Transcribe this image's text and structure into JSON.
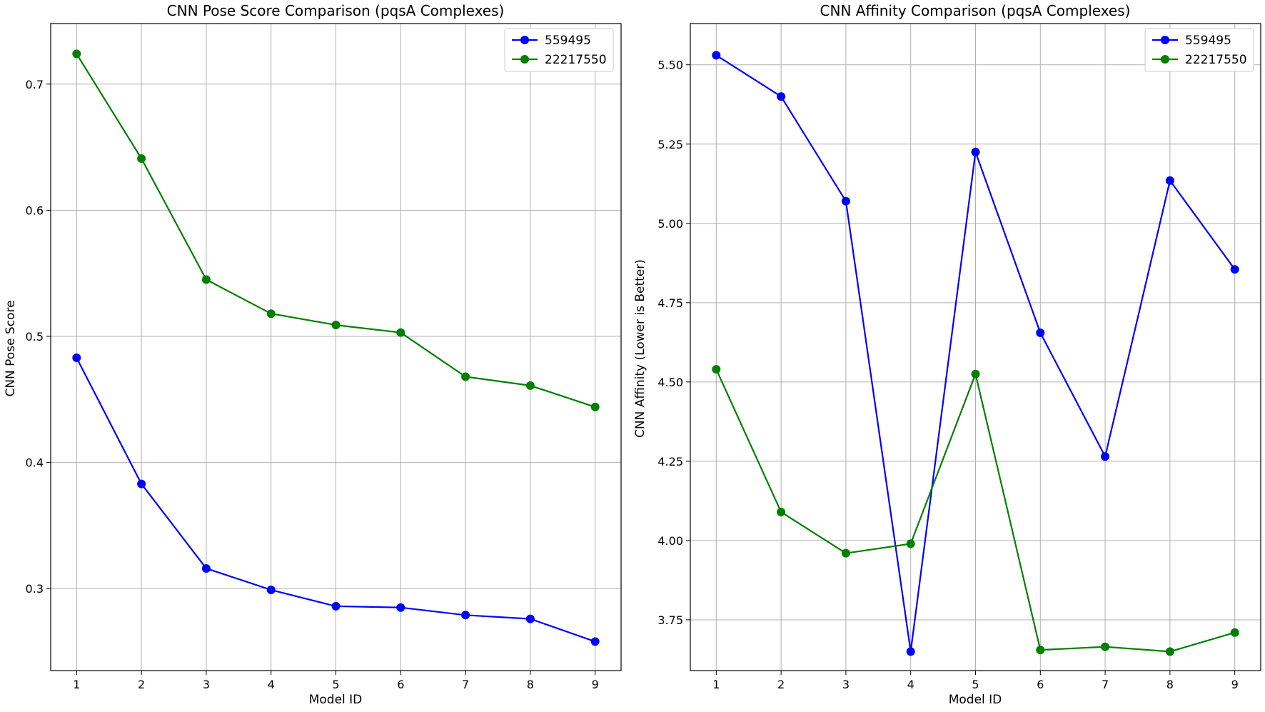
{
  "chart_data": [
    {
      "type": "line",
      "title": "CNN Pose Score Comparison (pqsA Complexes)",
      "xlabel": "Model ID",
      "ylabel": "CNN Pose Score",
      "x": [
        1,
        2,
        3,
        4,
        5,
        6,
        7,
        8,
        9
      ],
      "xlim": [
        0.6,
        9.4
      ],
      "ylim": [
        0.235,
        0.748
      ],
      "xticks": [
        1,
        2,
        3,
        4,
        5,
        6,
        7,
        8,
        9
      ],
      "yticks": [
        0.3,
        0.4,
        0.5,
        0.6,
        0.7
      ],
      "ytick_labels": [
        "0.3",
        "0.4",
        "0.5",
        "0.6",
        "0.7"
      ],
      "grid": true,
      "legend_position": "top-right",
      "series": [
        {
          "name": "559495",
          "color": "#0000ff",
          "values": [
            0.483,
            0.383,
            0.316,
            0.299,
            0.286,
            0.285,
            0.279,
            0.276,
            0.258
          ]
        },
        {
          "name": "22217550",
          "color": "#008000",
          "values": [
            0.724,
            0.641,
            0.545,
            0.518,
            0.509,
            0.503,
            0.468,
            0.461,
            0.444
          ]
        }
      ]
    },
    {
      "type": "line",
      "title": "CNN Affinity Comparison (pqsA Complexes)",
      "xlabel": "Model ID",
      "ylabel": "CNN Affinity (Lower is Better)",
      "x": [
        1,
        2,
        3,
        4,
        5,
        6,
        7,
        8,
        9
      ],
      "xlim": [
        0.6,
        9.4
      ],
      "ylim": [
        3.59,
        5.63
      ],
      "xticks": [
        1,
        2,
        3,
        4,
        5,
        6,
        7,
        8,
        9
      ],
      "yticks": [
        3.75,
        4.0,
        4.25,
        4.5,
        4.75,
        5.0,
        5.25,
        5.5
      ],
      "ytick_labels": [
        "3.75",
        "4.00",
        "4.25",
        "4.50",
        "4.75",
        "5.00",
        "5.25",
        "5.50"
      ],
      "grid": true,
      "legend_position": "top-right",
      "series": [
        {
          "name": "559495",
          "color": "#0000ff",
          "values": [
            5.53,
            5.4,
            5.07,
            3.65,
            5.225,
            4.655,
            4.265,
            5.135,
            4.855
          ]
        },
        {
          "name": "22217550",
          "color": "#008000",
          "values": [
            4.54,
            4.09,
            3.96,
            3.99,
            4.525,
            3.655,
            3.665,
            3.65,
            3.71
          ]
        }
      ]
    }
  ]
}
